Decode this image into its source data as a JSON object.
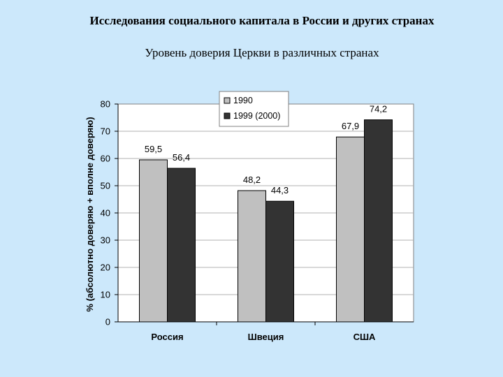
{
  "slide": {
    "title": "Исследования социального капитала в России и других странах"
  },
  "colors": {
    "background": "#cce8fb",
    "plot_background": "#ffffff",
    "series_1990": "#c0c0c0",
    "series_1999": "#333333",
    "gridline": "#b0b0b0"
  },
  "chart_data": {
    "type": "bar",
    "title": "Уровень доверия Церкви в различных странах",
    "xlabel": "",
    "ylabel": "% (абсолютно доверяю + вполне доверяю)",
    "categories": [
      "Россия",
      "Швеция",
      "США"
    ],
    "series": [
      {
        "name": "1990",
        "values": [
          59.5,
          48.2,
          67.9
        ],
        "labels": [
          "59,5",
          "48,2",
          "67,9"
        ]
      },
      {
        "name": "1999 (2000)",
        "values": [
          56.4,
          44.3,
          74.2
        ],
        "labels": [
          "56,4",
          "44,3",
          "74,2"
        ]
      }
    ],
    "ylim": [
      0,
      80
    ],
    "yticks": [
      "0",
      "10",
      "20",
      "30",
      "40",
      "50",
      "60",
      "70",
      "80"
    ],
    "grid": true,
    "legend_position": "top-center"
  }
}
